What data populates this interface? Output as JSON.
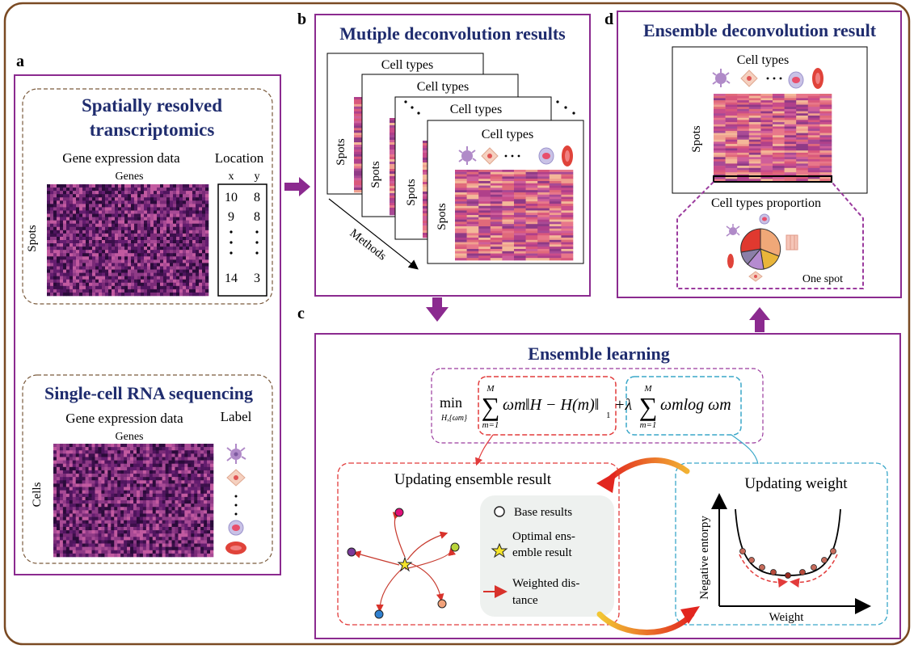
{
  "colors": {
    "frame": "#7a4a23",
    "panel": "#8b2a8f",
    "title": "#1f2c6e",
    "dashed_brown": "#7a5a3c",
    "dashed_purple": "#9b3b9e",
    "dashed_red": "#e23b3b",
    "dashed_blue": "#3aa7c9",
    "heat_dark": "#3b0f4a",
    "heat_mid": "#7a2b78",
    "heat_light": "#c25aa0"
  },
  "panel_a": {
    "letter": "a",
    "srt_title_line1": "Spatially resolved",
    "srt_title_line2": "transcriptomics",
    "srt_gene_expr": "Gene expression data",
    "srt_location": "Location",
    "srt_genes": "Genes",
    "srt_spots": "Spots",
    "col_x": "x",
    "col_y": "y",
    "loc_rows": [
      [
        "10",
        "8"
      ],
      [
        "9",
        "8"
      ],
      [
        "14",
        "3"
      ]
    ],
    "scrna_title": "Single-cell RNA sequencing",
    "scrna_gene_expr": "Gene expression data",
    "scrna_label": "Label",
    "scrna_genes": "Genes",
    "scrna_cells": "Cells"
  },
  "panel_b": {
    "letter": "b",
    "title": "Mutiple deconvolution results",
    "cell_types": "Cell types",
    "spots": "Spots",
    "methods": "Methods"
  },
  "panel_c": {
    "letter": "c",
    "title": "Ensemble learning",
    "updating_result": "Updating ensemble result",
    "updating_weight": "Updating weight",
    "legend_base": "Base results",
    "legend_optimal_line1": "Optimal ens-",
    "legend_optimal_line2": "emble result",
    "legend_weighted_line1": "Weighted dis-",
    "legend_weighted_line2": "tance",
    "y_axis": "Negative entorpy",
    "x_axis": "Weight",
    "formula_min": "min",
    "formula_sub": "H,{ωm}",
    "formula_sum_top": "M",
    "formula_sum_bottom": "m=1",
    "formula_omega": "ωm",
    "formula_norm": "‖H − H(m)‖",
    "formula_norm_sub": "1",
    "formula_plus": "+λ",
    "formula_log": "ωmlog ωm"
  },
  "panel_d": {
    "letter": "d",
    "title": "Ensemble deconvolution result",
    "cell_types": "Cell types",
    "spots": "Spots",
    "proportion": "Cell types proportion",
    "one_spot": "One spot"
  }
}
